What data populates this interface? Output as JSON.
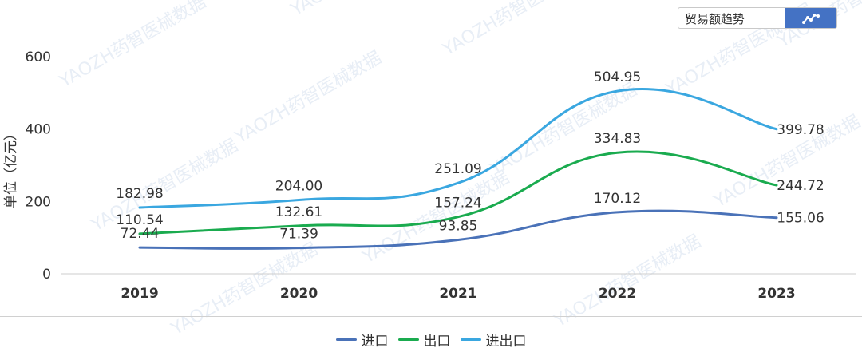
{
  "chart_data": {
    "type": "line",
    "categories": [
      "2019",
      "2020",
      "2021",
      "2022",
      "2023"
    ],
    "ylabel": "单位（亿元）",
    "ylim": [
      0,
      600
    ],
    "yticks": [
      "0",
      "200",
      "400",
      "600"
    ],
    "series": [
      {
        "name": "进口",
        "color": "#4a72b8",
        "values": [
          72.44,
          71.39,
          93.85,
          170.12,
          155.06
        ],
        "labels": [
          "72.44",
          "71.39",
          "93.85",
          "170.12",
          "155.06"
        ]
      },
      {
        "name": "出口",
        "color": "#1aab4f",
        "values": [
          110.54,
          132.61,
          157.24,
          334.83,
          244.72
        ],
        "labels": [
          "110.54",
          "132.61",
          "157.24",
          "334.83",
          "244.72"
        ]
      },
      {
        "name": "进出口",
        "color": "#3aa7e0",
        "values": [
          182.98,
          204.0,
          251.09,
          504.95,
          399.78
        ],
        "labels": [
          "182.98",
          "204.00",
          "251.09",
          "504.95",
          "399.78"
        ]
      }
    ],
    "grid": false,
    "legend_position": "bottom"
  },
  "toolbar": {
    "label": "贸易额趋势",
    "button_icon": "line-chart-icon"
  },
  "watermark": "YAOZH药智医械数据"
}
